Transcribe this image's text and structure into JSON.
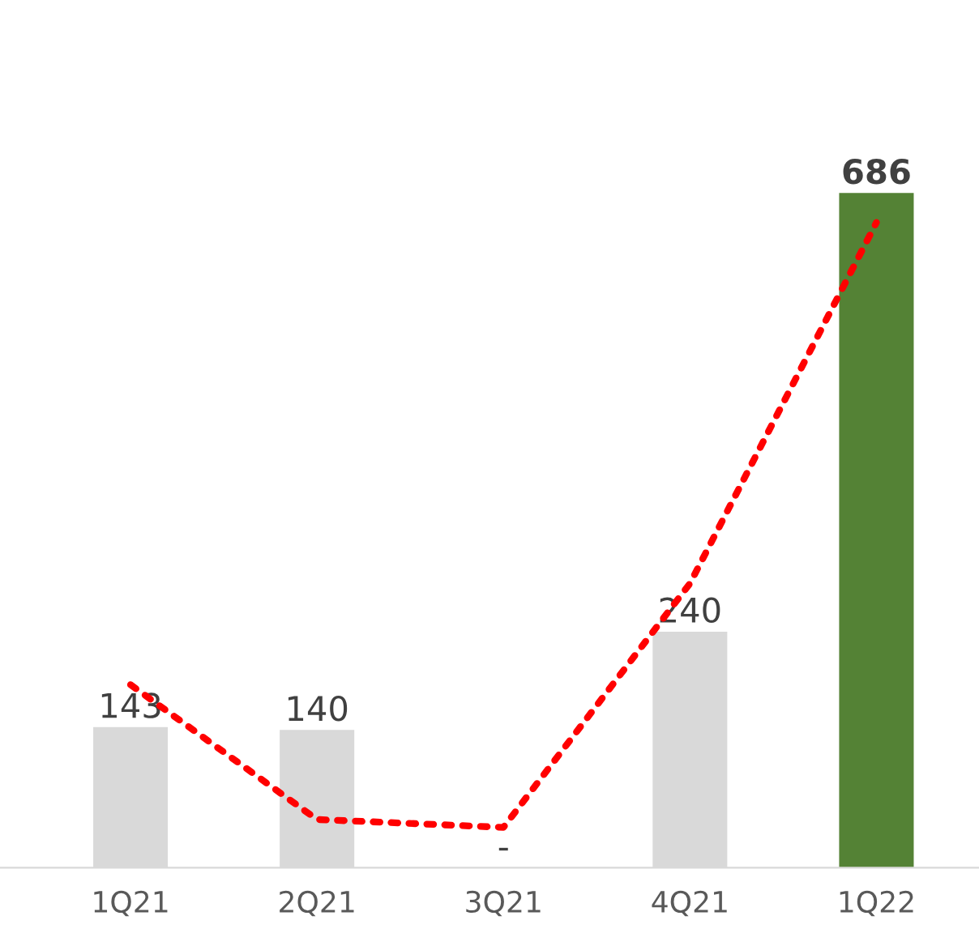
{
  "chart_data": {
    "type": "bar",
    "categories": [
      "1Q21",
      "2Q21",
      "3Q21",
      "4Q21",
      "1Q22"
    ],
    "series": [
      {
        "values": [
          143,
          140,
          null,
          240,
          686
        ],
        "colors": [
          "#d9d9d9",
          "#d9d9d9",
          "#d9d9d9",
          "#d9d9d9",
          "#548235"
        ],
        "value_labels": [
          "143",
          "140",
          "-",
          "240",
          "686"
        ]
      },
      {
        "type": "line",
        "color": "#ff0000",
        "line_style": "dotted",
        "values": [
          186,
          49,
          41,
          289,
          656
        ]
      }
    ],
    "grid": false,
    "legend": false
  }
}
